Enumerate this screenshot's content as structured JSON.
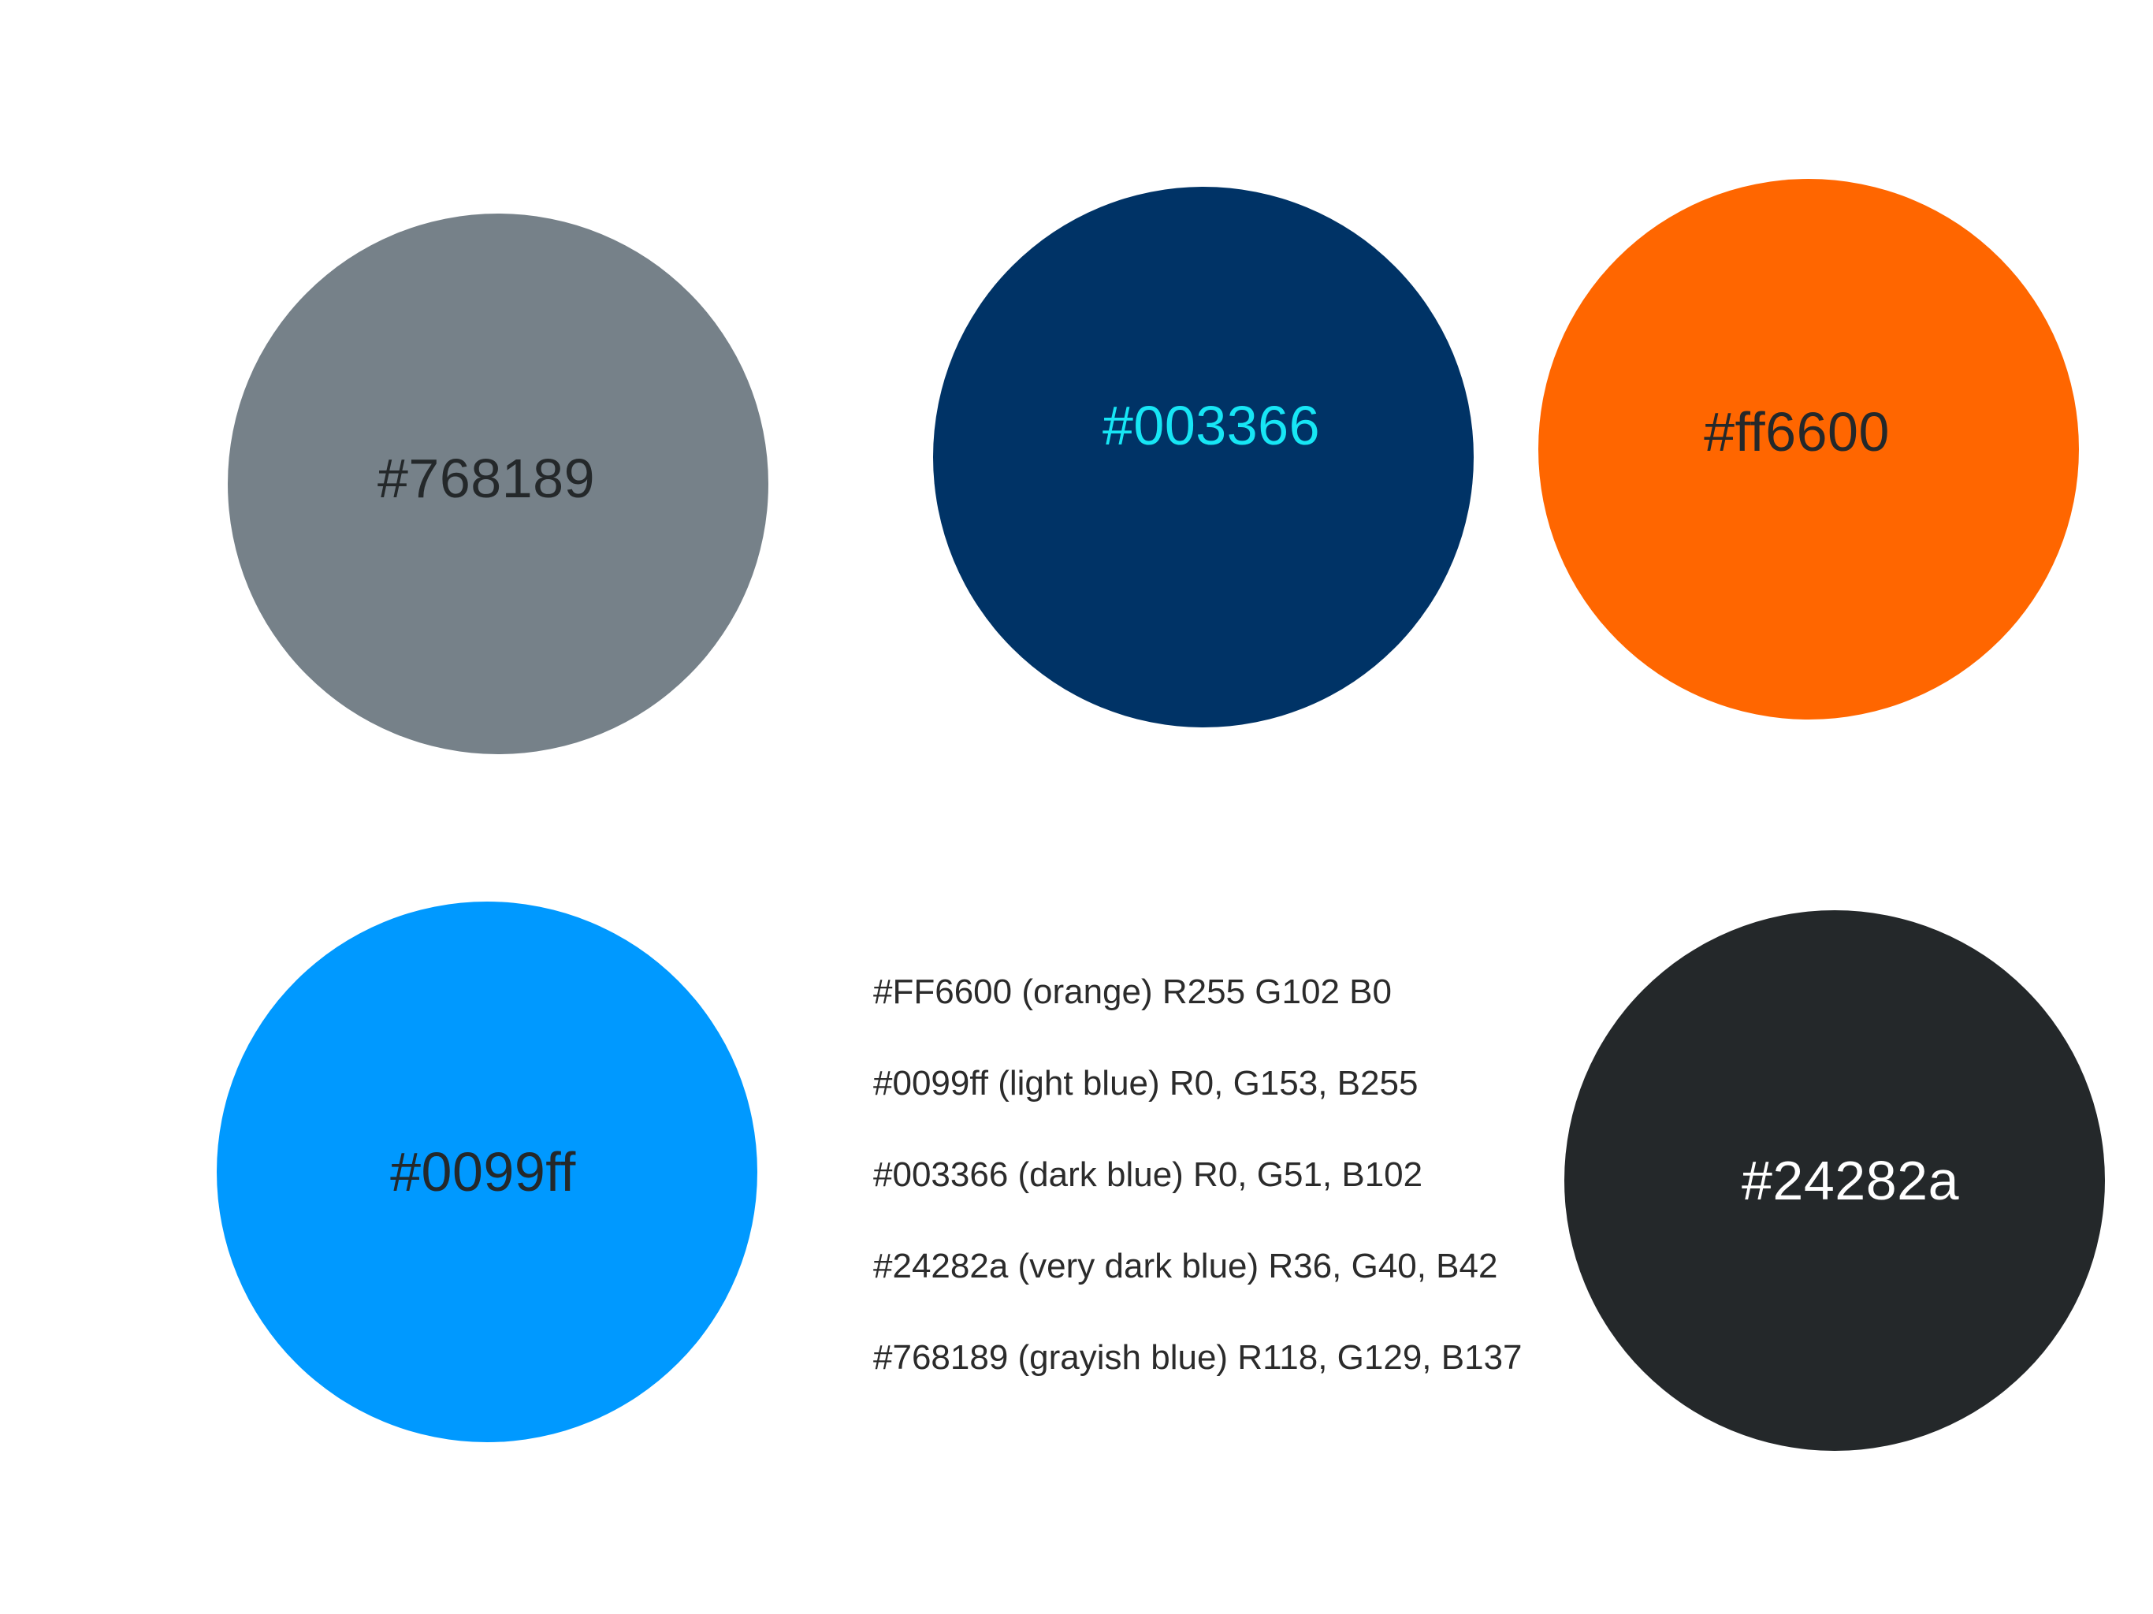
{
  "swatches": [
    {
      "id": "gray",
      "label": "#768189",
      "fill": "#768189",
      "text_color": "#24282a"
    },
    {
      "id": "navy",
      "label": "#003366",
      "fill": "#003366",
      "text_color": "#17e6f5"
    },
    {
      "id": "orange",
      "label": "#ff6600",
      "fill": "#ff6600",
      "text_color": "#24282a"
    },
    {
      "id": "light",
      "label": "#0099ff",
      "fill": "#0099ff",
      "text_color": "#24282a"
    },
    {
      "id": "dark",
      "label": "#24282a",
      "fill": "#24282a",
      "text_color": "#ffffff"
    }
  ],
  "legend": [
    "#FF6600 (orange) R255 G102 B0",
    "#0099ff (light blue) R0, G153, B255",
    "#003366 (dark blue) R0, G51, B102",
    "#24282a (very dark blue) R36, G40, B42",
    "#768189 (grayish blue) R118, G129, B137"
  ]
}
